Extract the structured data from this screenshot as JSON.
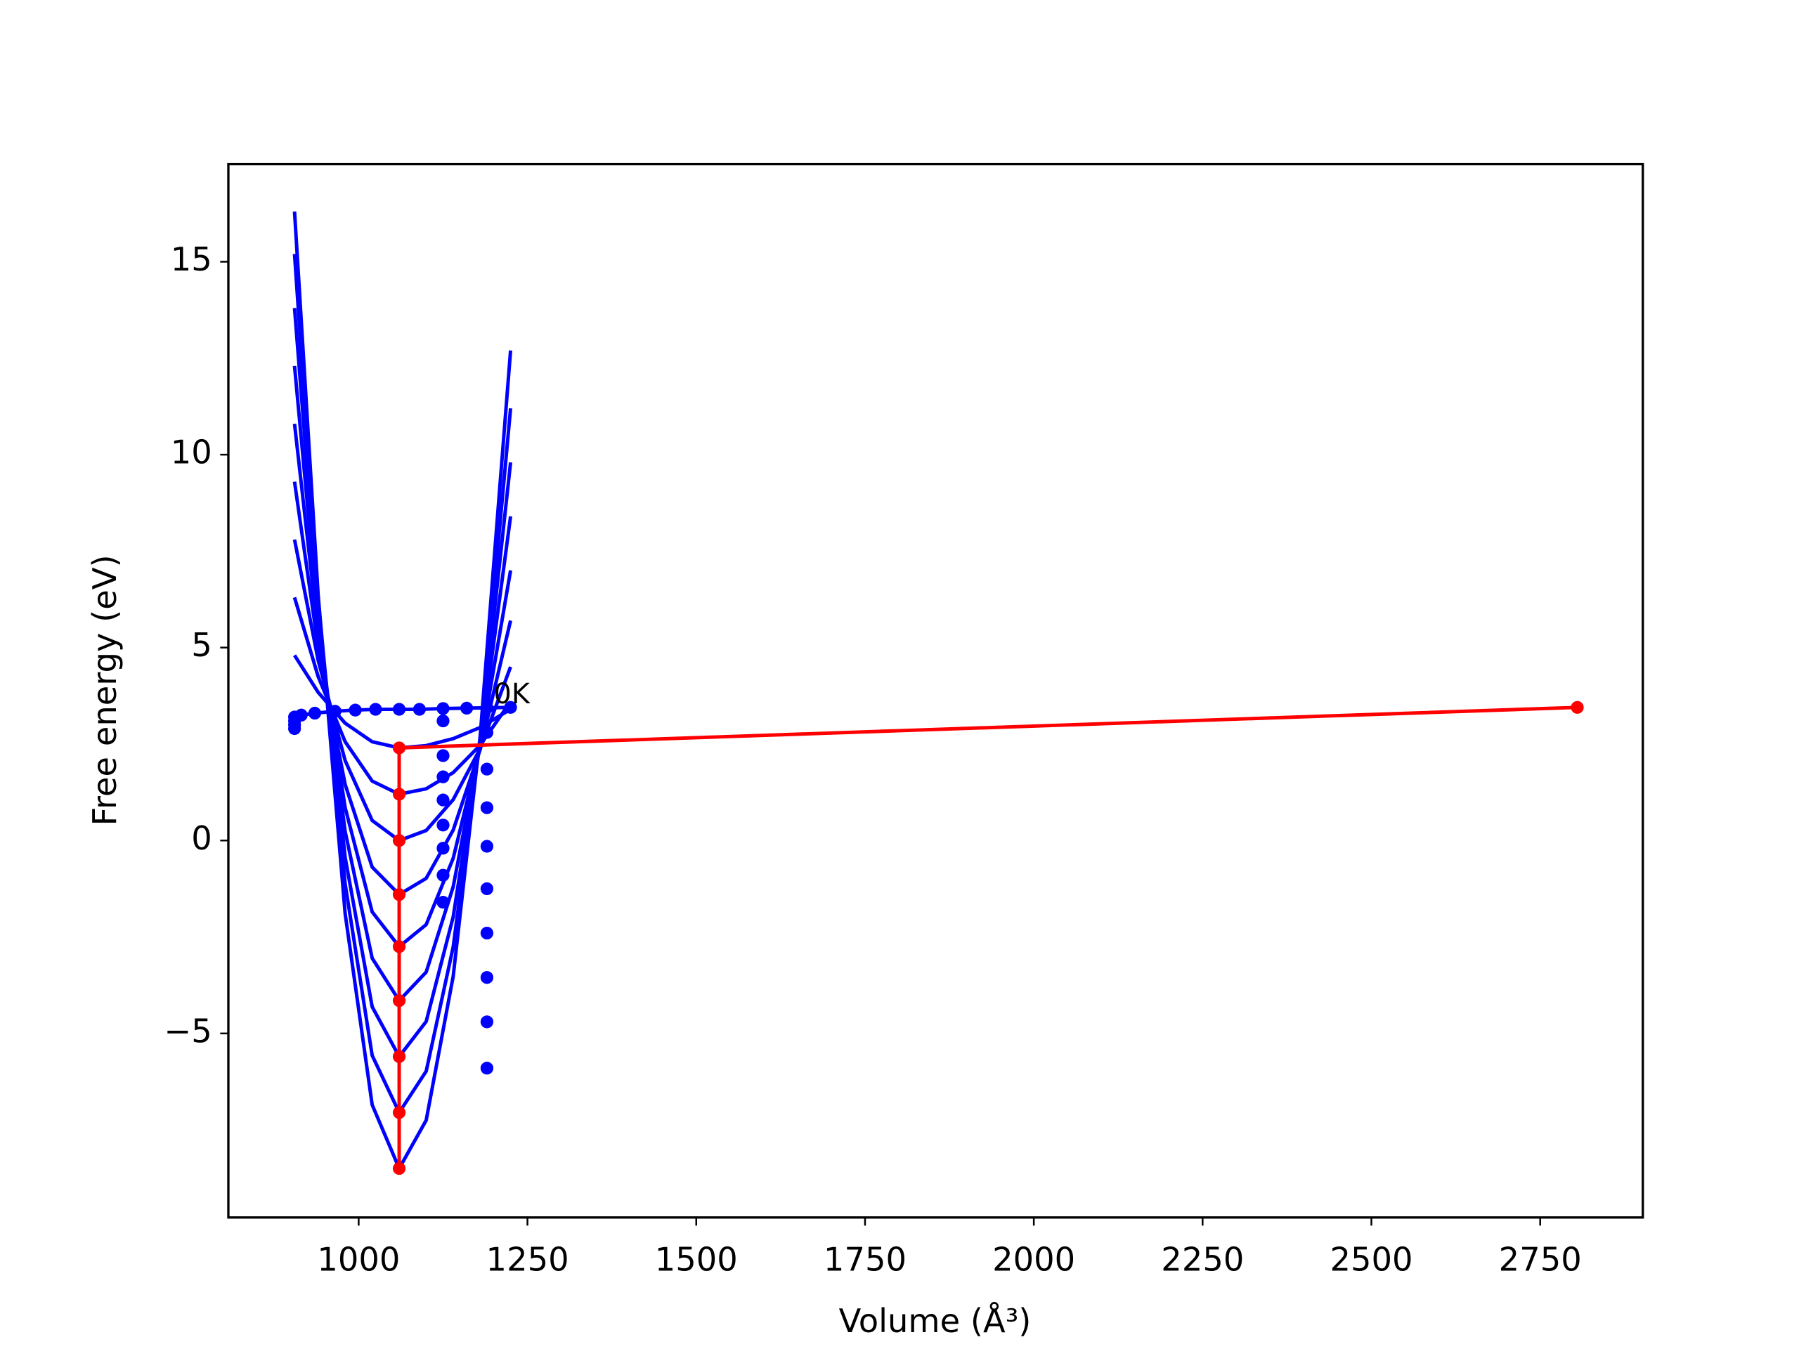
{
  "chart_data": {
    "type": "line",
    "xlabel": "Volume (Å³)",
    "ylabel": "Free energy (eV)",
    "xlim": [
      807,
      2902
    ],
    "ylim": [
      -9.77,
      17.53
    ],
    "xticks": [
      1000,
      1250,
      1500,
      1750,
      2000,
      2250,
      2500,
      2750
    ],
    "yticks": [
      {
        "value": -5,
        "label": "−5"
      },
      0,
      5,
      10,
      15
    ],
    "grid": false,
    "series": [
      {
        "color": "#0000ff",
        "line": true,
        "marker": false,
        "x": [
          905,
          940,
          980,
          1020,
          1060,
          1100,
          1140,
          1180,
          1225
        ],
        "values": [
          16.3,
          6.36,
          -1.9,
          -6.85,
          -8.5,
          -7.25,
          -3.52,
          2.71,
          12.7
        ]
      },
      {
        "color": "#0000ff",
        "line": true,
        "marker": false,
        "x": [
          905,
          940,
          980,
          1020,
          1060,
          1100,
          1140,
          1180,
          1225
        ],
        "values": [
          15.2,
          6.28,
          -1.13,
          -5.57,
          -7.05,
          -5.98,
          -2.76,
          2.6,
          11.2
        ]
      },
      {
        "color": "#0000ff",
        "line": true,
        "marker": false,
        "x": [
          905,
          940,
          980,
          1020,
          1060,
          1100,
          1140,
          1180,
          1225
        ],
        "values": [
          13.8,
          6.02,
          -0.44,
          -4.31,
          -5.6,
          -4.69,
          -1.98,
          2.55,
          9.8
        ]
      },
      {
        "color": "#0000ff",
        "line": true,
        "marker": false,
        "x": [
          905,
          940,
          980,
          1020,
          1060,
          1100,
          1140,
          1180,
          1225
        ],
        "values": [
          12.3,
          5.7,
          0.23,
          -3.05,
          -4.15,
          -3.41,
          -1.2,
          2.49,
          8.4
        ]
      },
      {
        "color": "#0000ff",
        "line": true,
        "marker": false,
        "x": [
          905,
          940,
          980,
          1020,
          1060,
          1100,
          1140,
          1180,
          1225
        ],
        "values": [
          10.8,
          5.37,
          0.85,
          -1.85,
          -2.75,
          -2.18,
          -0.46,
          2.41,
          7.0
        ]
      },
      {
        "color": "#0000ff",
        "line": true,
        "marker": false,
        "x": [
          905,
          940,
          980,
          1020,
          1060,
          1100,
          1140,
          1180,
          1225
        ],
        "values": [
          9.3,
          5.01,
          1.45,
          -0.69,
          -1.4,
          -0.98,
          0.27,
          2.36,
          5.7
        ]
      },
      {
        "color": "#0000ff",
        "line": true,
        "marker": false,
        "x": [
          905,
          940,
          980,
          1020,
          1060,
          1100,
          1140,
          1180,
          1225
        ],
        "values": [
          7.8,
          4.67,
          2.07,
          0.52,
          0,
          0.26,
          1.06,
          2.38,
          4.5
        ]
      },
      {
        "color": "#0000ff",
        "line": true,
        "marker": false,
        "x": [
          905,
          940,
          980,
          1020,
          1060,
          1100,
          1140,
          1180,
          1225
        ],
        "values": [
          6.3,
          4.25,
          2.56,
          1.54,
          1.2,
          1.34,
          1.76,
          2.47,
          3.6
        ]
      },
      {
        "color": "#0000ff",
        "line": true,
        "marker": false,
        "x": [
          905,
          940,
          980,
          1020,
          1060,
          1100,
          1140,
          1180,
          1225
        ],
        "values": [
          4.8,
          3.84,
          3.04,
          2.56,
          2.4,
          2.46,
          2.64,
          2.93,
          3.4
        ]
      },
      {
        "color": "#0000ff",
        "line": true,
        "marker": true,
        "x": [
          905,
          915,
          935,
          965,
          995,
          1025,
          1060,
          1090,
          1125,
          1160,
          1190,
          1225
        ],
        "values": [
          3.0,
          3.25,
          3.3,
          3.35,
          3.38,
          3.4,
          3.4,
          3.4,
          3.42,
          3.43,
          3.44,
          3.45
        ]
      },
      {
        "color": "#0000ff",
        "line": false,
        "marker": true,
        "x": [
          905,
          905,
          905,
          1125,
          1125,
          1125,
          1125,
          1125,
          1125,
          1125,
          1125,
          1190,
          1190,
          1190,
          1190,
          1190,
          1190,
          1190,
          1190,
          1190
        ],
        "values": [
          3.1,
          3.2,
          2.9,
          3.1,
          2.2,
          1.65,
          1.05,
          0.4,
          -0.2,
          -0.9,
          -1.6,
          2.8,
          1.85,
          0.85,
          -0.15,
          -1.25,
          -2.4,
          -3.55,
          -4.7,
          -5.9
        ]
      },
      {
        "color": "#ff0000",
        "line": true,
        "marker": true,
        "x": [
          1060,
          1060,
          1060,
          1060,
          1060,
          1060,
          1060,
          1060,
          1060,
          2805
        ],
        "values": [
          -8.5,
          -7.05,
          -5.6,
          -4.15,
          -2.75,
          -1.4,
          0,
          1.2,
          2.4,
          3.45
        ]
      }
    ],
    "annotations": [
      {
        "text": "0K",
        "x": 1200,
        "y": 3.75
      }
    ]
  }
}
